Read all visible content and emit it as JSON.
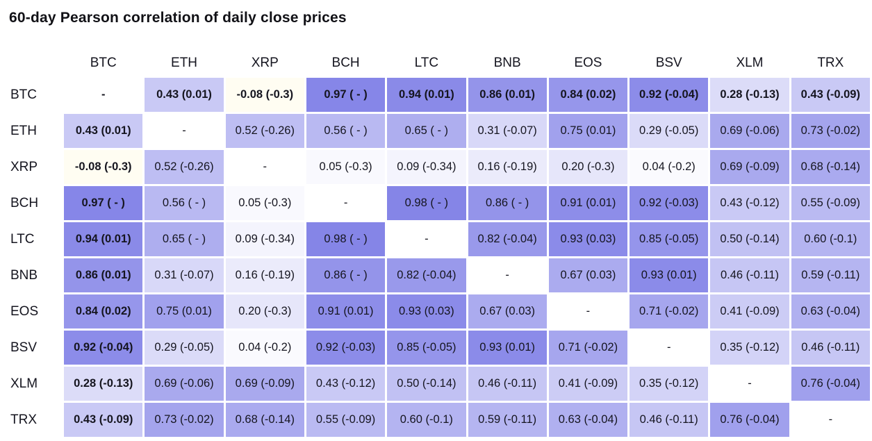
{
  "title": "60-day Pearson correlation of daily close prices",
  "colors": {
    "background": "#ffffff",
    "text": "#15151f",
    "diagonal_cell": "#ffffff",
    "positive_one": "#8282e7",
    "negative_one": "#ffe65f",
    "zero": "#ffffff"
  },
  "chart_data": {
    "type": "heatmap",
    "title": "60-day Pearson correlation of daily close prices",
    "cell_format": "correlation (delta)",
    "rows": [
      "BTC",
      "ETH",
      "XRP",
      "BCH",
      "LTC",
      "BNB",
      "EOS",
      "BSV",
      "XLM",
      "TRX"
    ],
    "columns": [
      "BTC",
      "ETH",
      "XRP",
      "BCH",
      "LTC",
      "BNB",
      "EOS",
      "BSV",
      "XLM",
      "TRX"
    ],
    "emphasis": {
      "bold_row": "BTC",
      "bold_column": "BTC"
    },
    "cells": [
      [
        "-",
        "0.43 (0.01)",
        "-0.08 (-0.3)",
        "0.97 ( - )",
        "0.94 (0.01)",
        "0.86 (0.01)",
        "0.84 (0.02)",
        "0.92 (-0.04)",
        "0.28 (-0.13)",
        "0.43 (-0.09)"
      ],
      [
        "0.43 (0.01)",
        "-",
        "0.52 (-0.26)",
        "0.56 ( - )",
        "0.65 ( - )",
        "0.31 (-0.07)",
        "0.75 (0.01)",
        "0.29 (-0.05)",
        "0.69 (-0.06)",
        "0.73 (-0.02)"
      ],
      [
        "-0.08 (-0.3)",
        "0.52 (-0.26)",
        "-",
        "0.05 (-0.3)",
        "0.09 (-0.34)",
        "0.16 (-0.19)",
        "0.20 (-0.3)",
        "0.04 (-0.2)",
        "0.69 (-0.09)",
        "0.68 (-0.14)"
      ],
      [
        "0.97 ( - )",
        "0.56 ( - )",
        "0.05 (-0.3)",
        "-",
        "0.98 ( - )",
        "0.86 ( - )",
        "0.91 (0.01)",
        "0.92 (-0.03)",
        "0.43 (-0.12)",
        "0.55 (-0.09)"
      ],
      [
        "0.94 (0.01)",
        "0.65 ( - )",
        "0.09 (-0.34)",
        "0.98 ( - )",
        "-",
        "0.82 (-0.04)",
        "0.93 (0.03)",
        "0.85 (-0.05)",
        "0.50 (-0.14)",
        "0.60 (-0.1)"
      ],
      [
        "0.86 (0.01)",
        "0.31 (-0.07)",
        "0.16 (-0.19)",
        "0.86 ( - )",
        "0.82 (-0.04)",
        "-",
        "0.67 (0.03)",
        "0.93 (0.01)",
        "0.46 (-0.11)",
        "0.59 (-0.11)"
      ],
      [
        "0.84 (0.02)",
        "0.75 (0.01)",
        "0.20 (-0.3)",
        "0.91 (0.01)",
        "0.93 (0.03)",
        "0.67 (0.03)",
        "-",
        "0.71 (-0.02)",
        "0.41 (-0.09)",
        "0.63 (-0.04)"
      ],
      [
        "0.92 (-0.04)",
        "0.29 (-0.05)",
        "0.04 (-0.2)",
        "0.92 (-0.03)",
        "0.85 (-0.05)",
        "0.93 (0.01)",
        "0.71 (-0.02)",
        "-",
        "0.35 (-0.12)",
        "0.46 (-0.11)"
      ],
      [
        "0.28 (-0.13)",
        "0.69 (-0.06)",
        "0.69 (-0.09)",
        "0.43 (-0.12)",
        "0.50 (-0.14)",
        "0.46 (-0.11)",
        "0.41 (-0.09)",
        "0.35 (-0.12)",
        "-",
        "0.76 (-0.04)"
      ],
      [
        "0.43 (-0.09)",
        "0.73 (-0.02)",
        "0.68 (-0.14)",
        "0.55 (-0.09)",
        "0.60 (-0.1)",
        "0.59 (-0.11)",
        "0.63 (-0.04)",
        "0.46 (-0.11)",
        "0.76 (-0.04)",
        "-"
      ]
    ]
  }
}
